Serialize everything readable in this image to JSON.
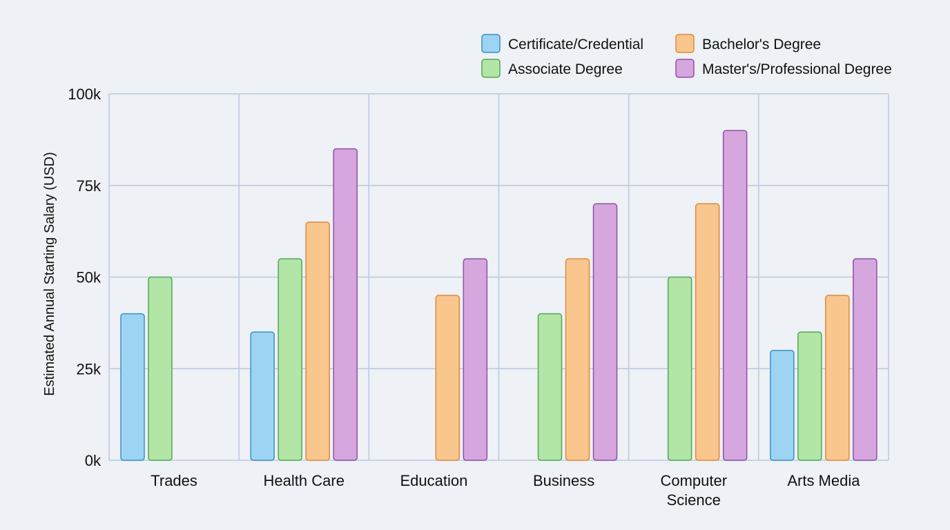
{
  "chart_data": {
    "type": "bar",
    "title": "",
    "xlabel": "",
    "ylabel": "Estimated Annual Starting Salary (USD)",
    "ylim": [
      0,
      100000
    ],
    "yticks": [
      0,
      25000,
      50000,
      75000,
      100000
    ],
    "ytick_labels": [
      "0k",
      "25k",
      "50k",
      "75k",
      "100k"
    ],
    "grid": true,
    "legend_position": "top-right",
    "categories": [
      [
        "Trades"
      ],
      [
        "Health Care"
      ],
      [
        "Education"
      ],
      [
        "Business"
      ],
      [
        "Computer",
        "Science"
      ],
      [
        "Arts Media"
      ]
    ],
    "series": [
      {
        "name": "Certificate/Credential",
        "color": "#9dd4f3",
        "stroke": "#3d8fc4",
        "values": [
          40000,
          35000,
          null,
          null,
          null,
          30000
        ]
      },
      {
        "name": "Associate Degree",
        "color": "#b2e5a6",
        "stroke": "#4eaa55",
        "values": [
          50000,
          55000,
          null,
          40000,
          50000,
          35000
        ]
      },
      {
        "name": "Bachelor's Degree",
        "color": "#f9c68e",
        "stroke": "#dd8a3a",
        "values": [
          null,
          65000,
          45000,
          55000,
          70000,
          45000
        ]
      },
      {
        "name": "Master's/Professional Degree",
        "color": "#d6a6df",
        "stroke": "#8e4fa5",
        "values": [
          null,
          85000,
          55000,
          70000,
          90000,
          55000
        ]
      }
    ]
  },
  "colors": {
    "background": "#eef1f5",
    "grid": "#b9c9de"
  }
}
